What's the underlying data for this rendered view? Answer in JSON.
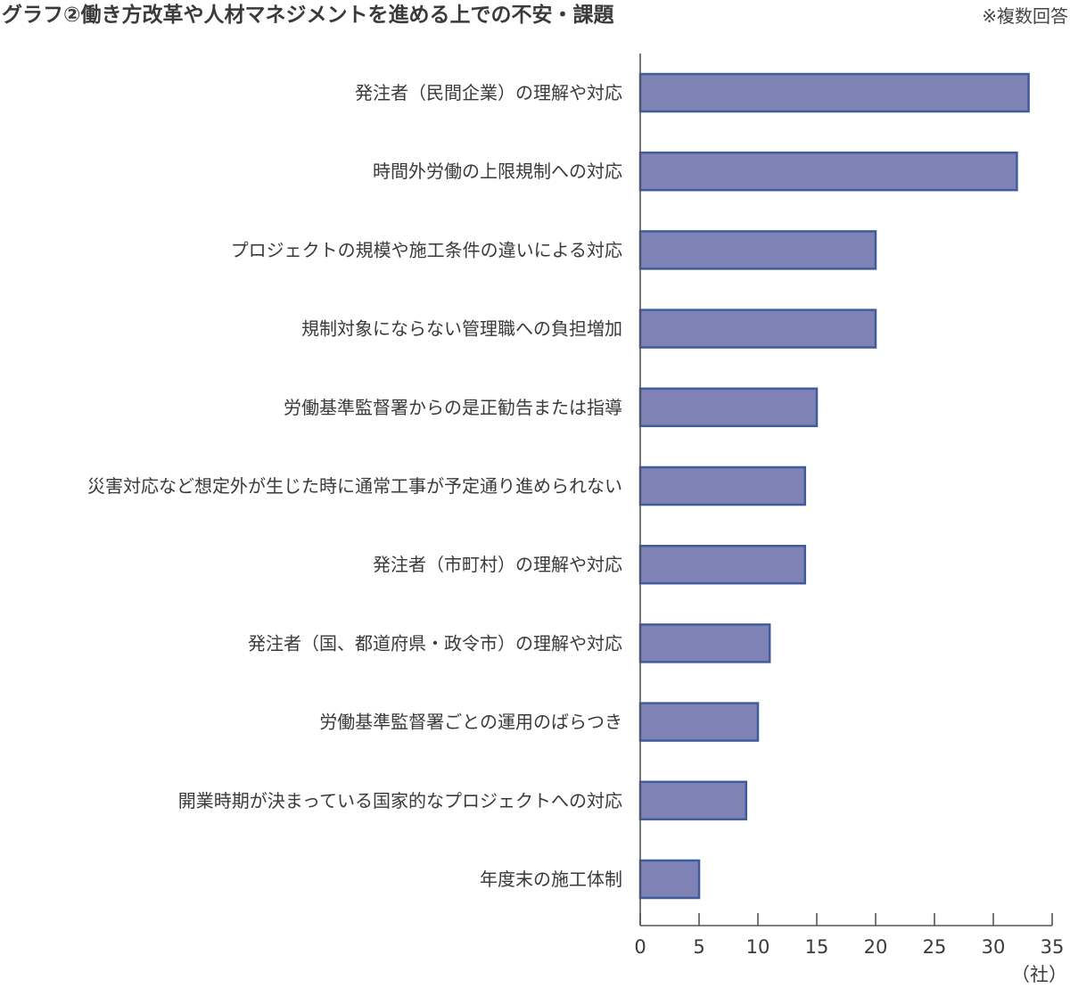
{
  "header": {
    "title": "グラフ②働き方改革や人材マネジメントを進める上での不安・課題",
    "note": "※複数回答"
  },
  "chart_data": {
    "type": "bar",
    "orientation": "horizontal",
    "title": "グラフ②働き方改革や人材マネジメントを進める上での不安・課題",
    "xlabel": "（社）",
    "ylabel": "",
    "xlim": [
      0,
      35
    ],
    "xticks": [
      0,
      5,
      10,
      15,
      20,
      25,
      30,
      35
    ],
    "grid": false,
    "categories": [
      "発注者（民間企業）の理解や対応",
      "時間外労働の上限規制への対応",
      "プロジェクトの規模や施工条件の違いによる対応",
      "規制対象にならない管理職への負担増加",
      "労働基準監督署からの是正勧告または指導",
      "災害対応など想定外が生じた時に通常工事が予定通り進められない",
      "発注者（市町村）の理解や対応",
      "発注者（国、都道府県・政令市）の理解や対応",
      "労働基準監督署ごとの運用のばらつき",
      "開業時期が決まっている国家的なプロジェクトへの対応",
      "年度末の施工体制"
    ],
    "values": [
      33,
      32,
      20,
      20,
      15,
      14,
      14,
      11,
      10,
      9,
      5
    ],
    "colors": {
      "bar_fill": "#7f82b5",
      "bar_stroke": "#3f5c9c"
    }
  }
}
